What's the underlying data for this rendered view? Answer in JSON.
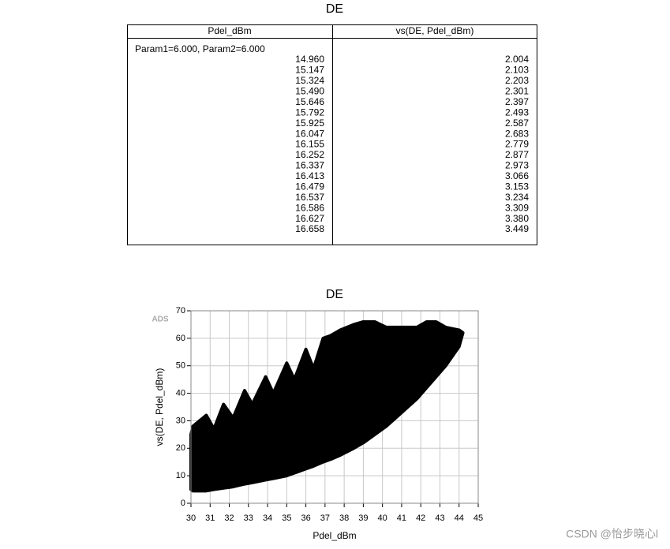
{
  "table": {
    "title": "DE",
    "headers": [
      "Pdel_dBm",
      "vs(DE, Pdel_dBm)"
    ],
    "group_label": "Param1=6.000, Param2=6.000",
    "rows": [
      [
        "14.960",
        "2.004"
      ],
      [
        "15.147",
        "2.103"
      ],
      [
        "15.324",
        "2.203"
      ],
      [
        "15.490",
        "2.301"
      ],
      [
        "15.646",
        "2.397"
      ],
      [
        "15.792",
        "2.493"
      ],
      [
        "15.925",
        "2.587"
      ],
      [
        "16.047",
        "2.683"
      ],
      [
        "16.155",
        "2.779"
      ],
      [
        "16.252",
        "2.877"
      ],
      [
        "16.337",
        "2.973"
      ],
      [
        "16.413",
        "3.066"
      ],
      [
        "16.479",
        "3.153"
      ],
      [
        "16.537",
        "3.234"
      ],
      [
        "16.586",
        "3.309"
      ],
      [
        "16.627",
        "3.380"
      ],
      [
        "16.658",
        "3.449"
      ]
    ]
  },
  "chart_data": {
    "type": "band",
    "title": "DE",
    "x_label": "Pdel_dBm",
    "y_label": "vs(DE, Pdel_dBm)",
    "watermark": "ADS",
    "color": "#000000",
    "x": [
      30.0,
      30.1,
      30.8,
      31.2,
      31.7,
      32.2,
      32.8,
      33.2,
      33.9,
      34.3,
      35.0,
      35.4,
      36.0,
      36.4,
      36.9,
      37.3,
      37.8,
      38.5,
      39.0,
      39.6,
      40.2,
      41.0,
      41.8,
      42.3,
      42.8,
      43.3,
      44.0,
      44.2
    ],
    "upper": [
      25,
      28,
      32,
      27,
      36,
      31,
      41,
      36,
      46,
      40,
      51,
      45,
      56,
      49,
      60,
      61,
      63,
      65,
      66,
      66,
      64,
      64,
      64,
      66,
      66,
      64,
      63,
      62
    ],
    "lower": [
      5,
      4.5,
      4.5,
      5,
      5.5,
      6,
      7,
      7.5,
      8.5,
      9,
      10,
      11,
      12.5,
      13.5,
      15,
      16,
      17.5,
      20,
      22,
      25,
      28,
      33,
      38,
      42,
      46,
      50,
      57,
      62
    ],
    "xlim": [
      30,
      45
    ],
    "xticks": [
      30,
      31,
      32,
      33,
      34,
      35,
      36,
      37,
      38,
      39,
      40,
      41,
      42,
      43,
      44,
      45
    ],
    "ylim": [
      0,
      70
    ],
    "yticks": [
      0,
      10,
      20,
      30,
      40,
      50,
      60,
      70
    ],
    "grid": true
  },
  "footer": {
    "credit": "CSDN @怡步晓心l"
  }
}
